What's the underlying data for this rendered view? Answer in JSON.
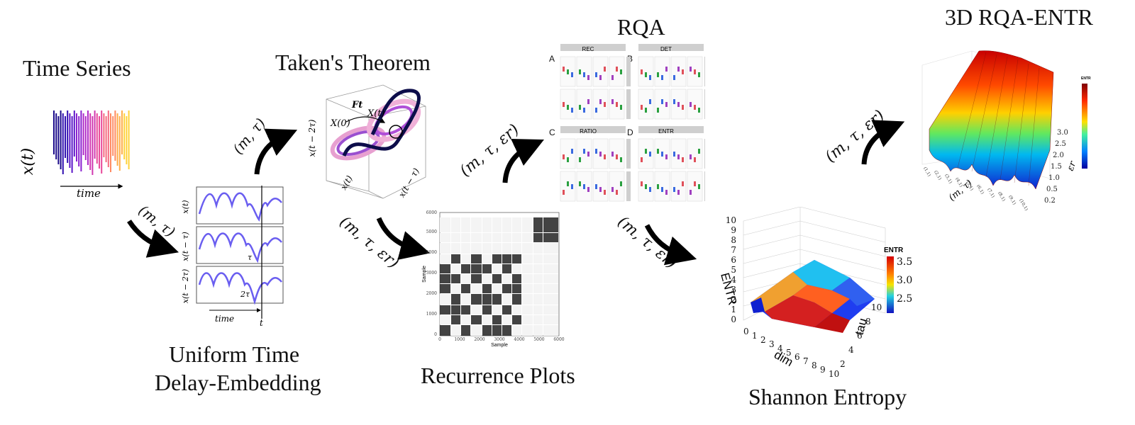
{
  "stages": {
    "time_series": "Time Series",
    "takens": "Taken's Theorem",
    "embedding_line1": "Uniform Time",
    "embedding_line2": "Delay-Embedding",
    "rqa": "RQA",
    "recurrence": "Recurrence Plots",
    "rqa3d": "3D RQA-ENTR",
    "entropy": "Shannon Entropy"
  },
  "params": {
    "m_tau": "(m, τ)",
    "m_tau_eps": "(m, τ, εr)"
  },
  "time_series_panel": {
    "ylabel": "x(t)",
    "xlabel": "time"
  },
  "embedding_panel": {
    "rows": [
      "x(t)",
      "x(t − τ)",
      "x(t − 2τ)"
    ],
    "shift_labels": [
      "τ",
      "2τ"
    ],
    "xlabel": "time",
    "t_label": "t"
  },
  "attractor_panel": {
    "flow_label": "Ft",
    "x0_label": "X(0)",
    "xt_label": "X(t)",
    "axes": [
      "x(t − 2τ)",
      "x(t)",
      "x(t − τ)"
    ]
  },
  "rqa_panel": {
    "letters": [
      "A",
      "B",
      "C",
      "D"
    ],
    "subtitles": [
      "REC",
      "DET",
      "RATIO",
      "ENTR"
    ],
    "col_headers": [
      "HN",
      "HF",
      "VN",
      "VF"
    ]
  },
  "recurrence_panel": {
    "xlabel": "Sample",
    "ylabel": "Sample",
    "ticks": [
      "0",
      "1000",
      "2000",
      "3000",
      "4000",
      "5000",
      "6000"
    ]
  },
  "entropy_panel": {
    "zlabel": "ENTR",
    "xlabel": "dim",
    "ylabel": "tau",
    "z_ticks": [
      "0",
      "1",
      "2",
      "3",
      "4",
      "5",
      "6",
      "7",
      "8",
      "9",
      "10"
    ],
    "x_ticks": [
      "0",
      "1",
      "2",
      "3",
      "4",
      "5",
      "6",
      "7",
      "8",
      "9",
      "10"
    ],
    "y_ticks": [
      "2",
      "4",
      "6",
      "8",
      "10"
    ],
    "legend_title": "ENTR",
    "legend_ticks": [
      "3.5",
      "3.0",
      "2.5"
    ]
  },
  "rqa3d_panel": {
    "legend_title": "ENTR",
    "x_ticks": [
      "(1,1)",
      "(2,1)",
      "(3,1)",
      "(4,1)",
      "(5,1)",
      "(6,1)",
      "(7,1)",
      "(8,1)",
      "(9,1)",
      "(10,1)"
    ],
    "y_ticks": [
      "3.0",
      "2.5",
      "2.0",
      "1.5",
      "1.0",
      "0.5",
      "0.2"
    ],
    "ylabel": "εr",
    "xlabel": "(m, τ)"
  }
}
